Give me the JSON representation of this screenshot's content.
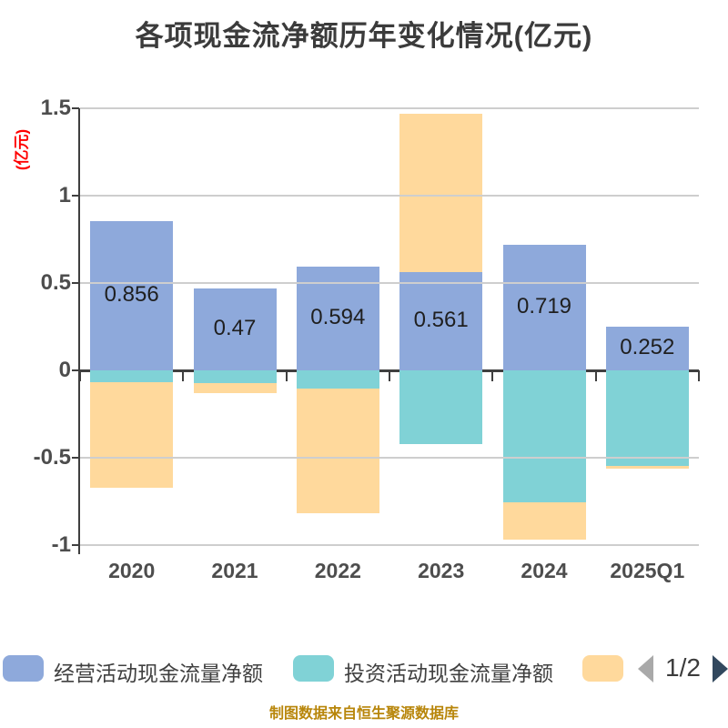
{
  "title": "各项现金流净额历年变化情况(亿元)",
  "y_axis": {
    "name": "(亿元)",
    "name_color": "#ff0000"
  },
  "chart_data": {
    "type": "bar",
    "stacked": true,
    "title": "各项现金流净额历年变化情况(亿元)",
    "ylabel": "(亿元)",
    "ylim": [
      -1,
      1.5
    ],
    "y_ticks": [
      1.5,
      1,
      0.5,
      0,
      -0.5,
      -1
    ],
    "grid": true,
    "legend_position": "bottom",
    "categories": [
      "2020",
      "2021",
      "2022",
      "2023",
      "2024",
      "2025Q1"
    ],
    "series": [
      {
        "name": "经营活动现金流量净额",
        "color": "#8EA9DB",
        "values": [
          0.856,
          0.47,
          0.594,
          0.561,
          0.719,
          0.252
        ],
        "labels": [
          "0.856",
          "0.47",
          "0.594",
          "0.561",
          "0.719",
          "0.252"
        ]
      },
      {
        "name": "投资活动现金流量净额",
        "color": "#80D2D6",
        "values": [
          -0.068,
          -0.073,
          -0.104,
          -0.424,
          -0.755,
          -0.548
        ]
      },
      {
        "name": "",
        "color": "#FFD99C",
        "values": [
          -0.602,
          -0.057,
          -0.715,
          0.908,
          -0.212,
          -0.012
        ]
      }
    ]
  },
  "legend": {
    "items": [
      {
        "label": "经营活动现金流量净额",
        "color": "#8EA9DB"
      },
      {
        "label": "投资活动现金流量净额",
        "color": "#80D2D6"
      },
      {
        "label": "",
        "color": "#FFD99C"
      }
    ],
    "pagination": {
      "label": "1/2"
    }
  },
  "footer": "制图数据来自恒生聚源数据库",
  "colors": {
    "grid": "#cecece",
    "axis": "#3f3f3f",
    "tick_text": "#4d4d4d",
    "value_label": "#1f1f1f",
    "prev_arrow": "#a9a9a9",
    "next_arrow": "#32485e"
  }
}
